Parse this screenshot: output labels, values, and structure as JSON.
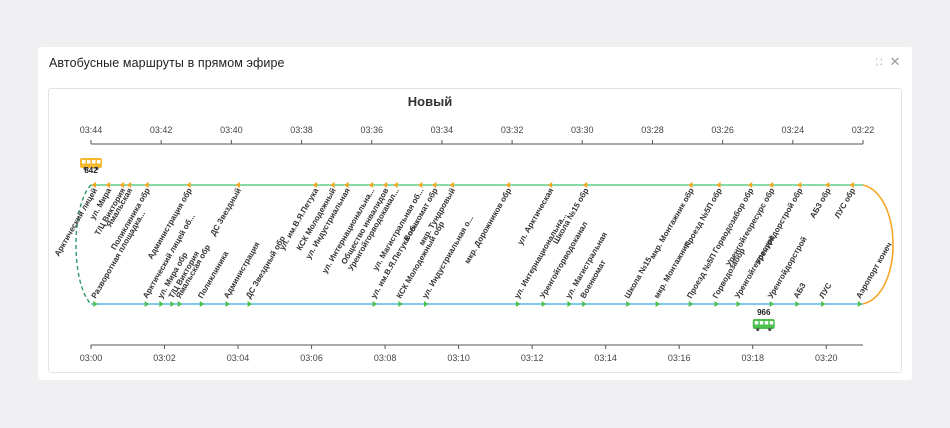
{
  "panel": {
    "title": "Автобусные маршруты в прямом эфире",
    "expand_icon": "expand-icon",
    "close_icon": "close-icon"
  },
  "chart_data": {
    "type": "line",
    "title": "Новый",
    "colors": {
      "top_line": "#5fd08a",
      "bottom_line": "#55b8e8",
      "top_marker": "#f5a623",
      "bottom_marker": "#4cc04c",
      "right_connector": "#f5a623",
      "left_connector": "#2e9a66",
      "bus_top": "#f5b82e",
      "bus_bottom": "#4cbf4c"
    },
    "top_axis": {
      "direction": "reversed",
      "range": [
        "03:44",
        "03:22"
      ],
      "ticks": [
        "03:44",
        "03:42",
        "03:40",
        "03:38",
        "03:36",
        "03:34",
        "03:32",
        "03:30",
        "03:28",
        "03:26",
        "03:24",
        "03:22"
      ]
    },
    "bottom_axis": {
      "range": [
        "03:00",
        "03:21"
      ],
      "ticks": [
        "03:00",
        "03:02",
        "03:04",
        "03:06",
        "03:08",
        "03:10",
        "03:12",
        "03:14",
        "03:16",
        "03:18",
        "03:20"
      ]
    },
    "top_stops": [
      {
        "label": "Арктический лицей",
        "t": "03:43.9"
      },
      {
        "label": "ул. Мира",
        "t": "03:43.5"
      },
      {
        "label": "Т/Ц Виктория",
        "t": "03:43.1"
      },
      {
        "label": "Ямальская",
        "t": "03:42.9"
      },
      {
        "label": "Поликлиника обр",
        "t": "03:42.4"
      },
      {
        "label": "Администрация обр",
        "t": "03:41.2"
      },
      {
        "label": "ДС Звездный",
        "t": "03:39.8"
      },
      {
        "label": "ул. им.В.Я.Петука",
        "t": "03:37.6"
      },
      {
        "label": "КСК Молодежный",
        "t": "03:37.1"
      },
      {
        "label": "ул. Индустриальная",
        "t": "03:36.7"
      },
      {
        "label": "ул. Интернациональна...",
        "t": "03:36.0"
      },
      {
        "label": "Общество инвалидов",
        "t": "03:35.6"
      },
      {
        "label": "Уренгойгорводоканал...",
        "t": "03:35.3"
      },
      {
        "label": "ул. Магистральная об...",
        "t": "03:34.6"
      },
      {
        "label": "Военкомат обр",
        "t": "03:34.2"
      },
      {
        "label": "мкр. Тундровый",
        "t": "03:33.7"
      },
      {
        "label": "мкр. Дорожников обр",
        "t": "03:32.1"
      },
      {
        "label": "ул. Арктическая",
        "t": "03:30.9"
      },
      {
        "label": "Школа №15 обр",
        "t": "03:29.9"
      },
      {
        "label": "мкр. Монтажник обр",
        "t": "03:26.9"
      },
      {
        "label": "Проезд №5П обр",
        "t": "03:26.1"
      },
      {
        "label": "Горводозабор обр",
        "t": "03:25.2"
      },
      {
        "label": "Уренгойгеоресурс обр",
        "t": "03:24.6"
      },
      {
        "label": "Уренгойдорстрой обр",
        "t": "03:23.8"
      },
      {
        "label": "АБЗ обр",
        "t": "03:23.0"
      },
      {
        "label": "ЛУС обр",
        "t": "03:22.3"
      }
    ],
    "bottom_stops": [
      {
        "label": "Разворотная площадка...",
        "t": "03:00.1"
      },
      {
        "label": "Арктический лицей об...",
        "t": "03:01.5"
      },
      {
        "label": "ул. Мира обр",
        "t": "03:01.9"
      },
      {
        "label": "Т/Ц Виктория",
        "t": "03:02.2"
      },
      {
        "label": "Ямальская обр",
        "t": "03:02.4"
      },
      {
        "label": "Поликлиника",
        "t": "03:03.0"
      },
      {
        "label": "Администрация",
        "t": "03:03.7"
      },
      {
        "label": "ДС Звездный обр",
        "t": "03:04.3"
      },
      {
        "label": "ул. им.В.Я.Петука об...",
        "t": "03:07.7"
      },
      {
        "label": "КСК Молодежный обр",
        "t": "03:08.4"
      },
      {
        "label": "ул. Индустриальная о...",
        "t": "03:09.1"
      },
      {
        "label": "ул. Интернациональна...",
        "t": "03:11.6"
      },
      {
        "label": "Уренгойгорводоканал",
        "t": "03:12.3"
      },
      {
        "label": "ул. Магистральная",
        "t": "03:13.0"
      },
      {
        "label": "Военкомат",
        "t": "03:13.4"
      },
      {
        "label": "Школа №15",
        "t": "03:14.6"
      },
      {
        "label": "мкр. Монтажник",
        "t": "03:15.4"
      },
      {
        "label": "Проезд №5П",
        "t": "03:16.3"
      },
      {
        "label": "Горводозабор",
        "t": "03:17.0"
      },
      {
        "label": "Уренгойгеоресурс",
        "t": "03:17.6"
      },
      {
        "label": "Уренгойдорстрой",
        "t": "03:18.5"
      },
      {
        "label": "АБЗ",
        "t": "03:19.2"
      },
      {
        "label": "ЛУС",
        "t": "03:19.9"
      },
      {
        "label": "Аэропорт конеч",
        "t": "03:20.9"
      }
    ],
    "buses": [
      {
        "number": "842",
        "line": "top",
        "t": "03:44.0",
        "icon": "bus-icon"
      },
      {
        "number": "966",
        "line": "bottom",
        "t": "03:18.3",
        "icon": "bus-icon"
      }
    ]
  }
}
